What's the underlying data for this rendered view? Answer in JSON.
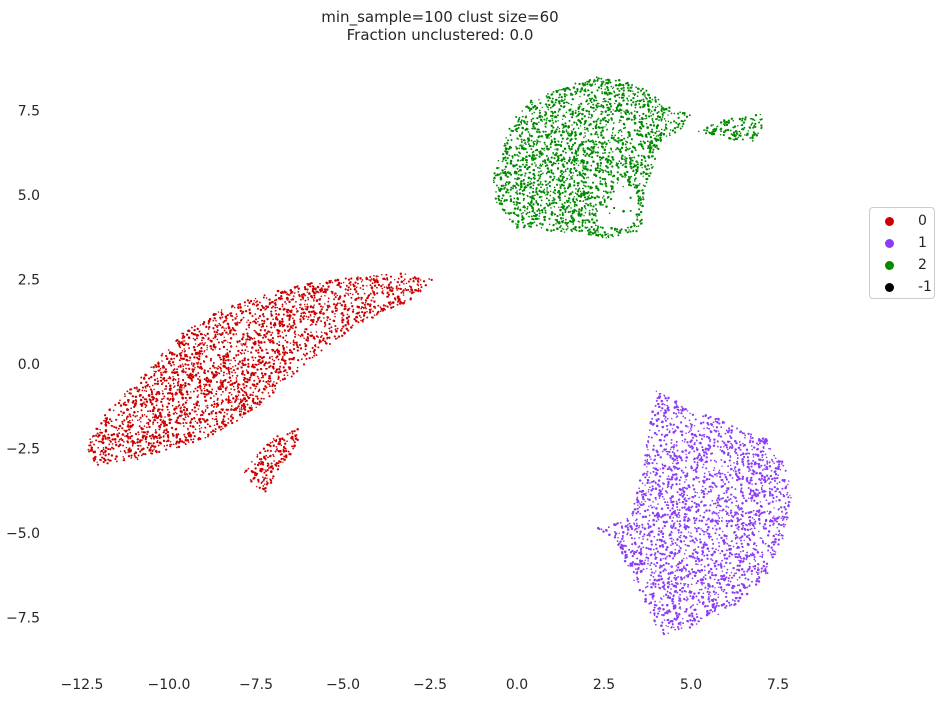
{
  "title_line1": "min_sample=100 clust size=60",
  "title_line2": "Fraction unclustered: 0.0",
  "chart_data": {
    "type": "scatter",
    "title": "min_sample=100 clust size=60\nFraction unclustered: 0.0",
    "xlabel": "",
    "ylabel": "",
    "xlim": [
      -14.2,
      10.5
    ],
    "ylim": [
      -8.9,
      9.2
    ],
    "xticks": [
      -12.5,
      -10.0,
      -7.5,
      -5.0,
      -2.5,
      0.0,
      2.5,
      5.0,
      7.5
    ],
    "xtick_labels": [
      "−12.5",
      "−10.0",
      "−7.5",
      "−5.0",
      "−2.5",
      "0.0",
      "2.5",
      "5.0",
      "7.5"
    ],
    "yticks": [
      7.5,
      5.0,
      2.5,
      0.0,
      -2.5,
      -5.0,
      -7.5
    ],
    "ytick_labels": [
      "7.5",
      "5.0",
      "2.5",
      "0.0",
      "−2.5",
      "−5.0",
      "−7.5"
    ],
    "grid": false,
    "legend_position": "right",
    "series": [
      {
        "name": "0",
        "color": "#cc0000",
        "x_range": [
          -12.3,
          -2.4
        ],
        "y_range": [
          -3.8,
          2.8
        ],
        "regions": [
          {
            "shape": "polygon",
            "points": [
              [
                -12.2,
                -2.9
              ],
              [
                -12.4,
                -2.4
              ],
              [
                -11.8,
                -1.4
              ],
              [
                -10.6,
                -0.2
              ],
              [
                -9.8,
                0.8
              ],
              [
                -8.5,
                1.6
              ],
              [
                -7.5,
                2.0
              ],
              [
                -6.0,
                2.4
              ],
              [
                -4.5,
                2.6
              ],
              [
                -3.2,
                2.7
              ],
              [
                -2.4,
                2.5
              ],
              [
                -3.0,
                1.9
              ],
              [
                -4.5,
                1.2
              ],
              [
                -5.5,
                0.5
              ],
              [
                -6.5,
                -0.4
              ],
              [
                -7.5,
                -1.3
              ],
              [
                -8.5,
                -2.0
              ],
              [
                -9.5,
                -2.4
              ],
              [
                -10.8,
                -2.8
              ],
              [
                -12.0,
                -3.0
              ]
            ]
          },
          {
            "shape": "polygon",
            "points": [
              [
                -7.9,
                -3.2
              ],
              [
                -7.3,
                -2.5
              ],
              [
                -6.9,
                -2.1
              ],
              [
                -6.3,
                -1.9
              ],
              [
                -6.3,
                -2.4
              ],
              [
                -6.5,
                -2.7
              ],
              [
                -6.9,
                -3.2
              ],
              [
                -7.2,
                -3.8
              ],
              [
                -7.6,
                -3.6
              ]
            ]
          }
        ]
      },
      {
        "name": "1",
        "color": "#8b3df5",
        "x_range": [
          2.2,
          7.9
        ],
        "y_range": [
          -8.0,
          -0.7
        ],
        "regions": [
          {
            "shape": "polygon",
            "points": [
              [
                4.0,
                -0.8
              ],
              [
                3.7,
                -2.5
              ],
              [
                3.3,
                -4.5
              ],
              [
                2.6,
                -4.8
              ],
              [
                2.2,
                -4.8
              ],
              [
                2.7,
                -5.1
              ],
              [
                3.0,
                -5.6
              ],
              [
                3.4,
                -6.5
              ],
              [
                3.8,
                -7.5
              ],
              [
                4.2,
                -8.0
              ],
              [
                5.0,
                -7.8
              ],
              [
                5.8,
                -7.4
              ],
              [
                6.5,
                -7.0
              ],
              [
                7.2,
                -6.2
              ],
              [
                7.7,
                -5.0
              ],
              [
                7.9,
                -3.8
              ],
              [
                7.7,
                -3.0
              ],
              [
                7.2,
                -2.2
              ],
              [
                6.5,
                -2.0
              ],
              [
                5.8,
                -1.6
              ],
              [
                5.0,
                -1.4
              ],
              [
                4.5,
                -1.0
              ]
            ]
          }
        ]
      },
      {
        "name": "2",
        "color": "#008a00",
        "x_range": [
          -0.8,
          7.2
        ],
        "y_range": [
          3.6,
          8.5
        ],
        "regions": [
          {
            "shape": "polygon",
            "points": [
              [
                0.0,
                4.0
              ],
              [
                -0.6,
                4.8
              ],
              [
                -0.7,
                5.6
              ],
              [
                -0.4,
                6.4
              ],
              [
                -0.2,
                7.2
              ],
              [
                0.4,
                7.8
              ],
              [
                1.4,
                8.2
              ],
              [
                2.2,
                8.5
              ],
              [
                3.0,
                8.4
              ],
              [
                3.7,
                8.1
              ],
              [
                4.4,
                7.6
              ],
              [
                5.0,
                7.4
              ],
              [
                4.8,
                7.0
              ],
              [
                4.2,
                6.6
              ],
              [
                4.0,
                6.0
              ],
              [
                3.7,
                5.3
              ],
              [
                3.6,
                4.6
              ],
              [
                3.6,
                3.9
              ],
              [
                3.3,
                3.9
              ],
              [
                2.5,
                3.7
              ],
              [
                1.8,
                3.9
              ],
              [
                1.2,
                3.9
              ],
              [
                0.5,
                4.0
              ]
            ]
          },
          {
            "shape": "polygon",
            "points": [
              [
                5.2,
                6.9
              ],
              [
                5.6,
                7.1
              ],
              [
                6.2,
                7.3
              ],
              [
                7.0,
                7.4
              ],
              [
                7.1,
                7.0
              ],
              [
                6.8,
                6.6
              ],
              [
                6.3,
                6.6
              ],
              [
                5.8,
                6.8
              ],
              [
                5.4,
                6.7
              ]
            ]
          }
        ],
        "holes": [
          {
            "shape": "polygon",
            "points": [
              [
                2.3,
                4.4
              ],
              [
                2.6,
                4.9
              ],
              [
                3.1,
                5.3
              ],
              [
                3.4,
                5.2
              ],
              [
                3.5,
                4.7
              ],
              [
                3.4,
                4.2
              ],
              [
                3.0,
                4.0
              ],
              [
                2.5,
                4.1
              ]
            ]
          }
        ]
      },
      {
        "name": "-1",
        "color": "#000000",
        "regions": []
      }
    ]
  },
  "legend": [
    {
      "label": "0",
      "color": "#cc0000"
    },
    {
      "label": "1",
      "color": "#8b3df5"
    },
    {
      "label": "2",
      "color": "#008a00"
    },
    {
      "label": "-1",
      "color": "#000000"
    }
  ]
}
